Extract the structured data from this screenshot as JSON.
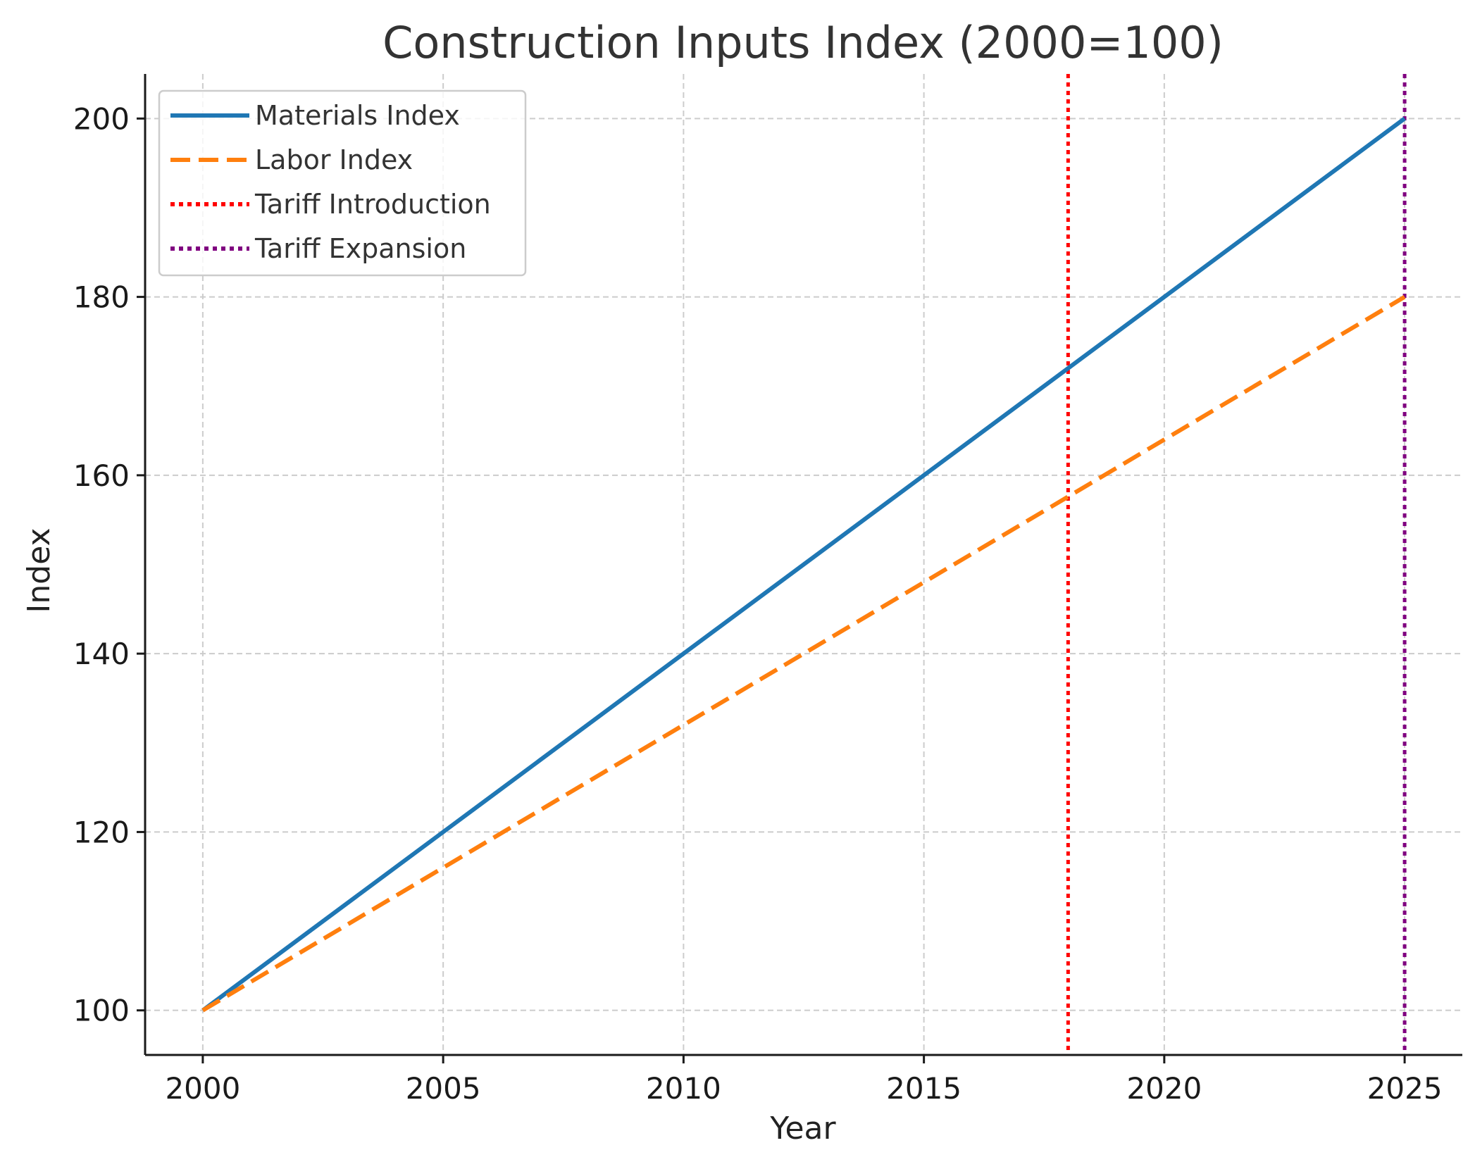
{
  "chart_data": {
    "type": "line",
    "title": "Construction Inputs Index (2000=100)",
    "xlabel": "Year",
    "ylabel": "Index",
    "xlim": [
      1998.8,
      2026.2
    ],
    "ylim": [
      95,
      205
    ],
    "xticks": [
      2000,
      2005,
      2010,
      2015,
      2020,
      2025
    ],
    "yticks": [
      100,
      120,
      140,
      160,
      180,
      200
    ],
    "grid": true,
    "legend_position": "top-left",
    "x": [
      2000,
      2025
    ],
    "series": [
      {
        "name": "Materials Index",
        "values": [
          100,
          200
        ],
        "color": "#1f77b4",
        "style": "solid"
      },
      {
        "name": "Labor Index",
        "values": [
          100,
          180
        ],
        "color": "#ff7f0e",
        "style": "dashed"
      }
    ],
    "vlines": [
      {
        "name": "Tariff Introduction",
        "x": 2018,
        "color": "#ff0000",
        "style": "dotted"
      },
      {
        "name": "Tariff Expansion",
        "x": 2025,
        "color": "#800080",
        "style": "dotted"
      }
    ]
  }
}
